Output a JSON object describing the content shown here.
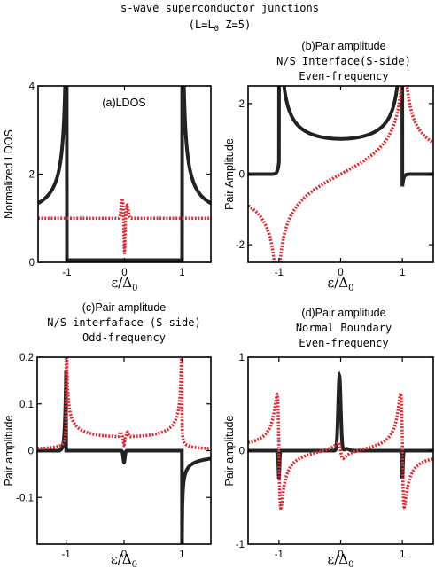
{
  "figure": {
    "title": "s-wave superconductor junctions",
    "params": "(L=L",
    "params_sub": "0",
    "params_tail": " Z=5)"
  },
  "chart_data": [
    {
      "type": "line",
      "title_lines": [
        "(a)LDOS"
      ],
      "xlabel": "ε/Δ",
      "xlabel_sub": "0",
      "ylabel": "Normalized LDOS",
      "xlim": [
        -1.5,
        1.5
      ],
      "ylim": [
        0,
        4
      ],
      "xticks": [
        -1,
        0,
        1
      ],
      "yticks": [
        0,
        2,
        4
      ],
      "series": [
        {
          "style": "solid-black",
          "curve": "ldos_s"
        },
        {
          "style": "dotted-red",
          "curve": "ldos_zbp"
        }
      ]
    },
    {
      "type": "line",
      "title_lines": [
        "(b)Pair amplitude",
        "N/S Interface(S-side)",
        "Even-frequency"
      ],
      "xlabel": "ε/Δ",
      "xlabel_sub": "0",
      "ylabel": "Pair Amplitude",
      "xlim": [
        -1.5,
        1.5
      ],
      "ylim": [
        -2.5,
        2.5
      ],
      "xticks": [
        -1,
        0,
        1
      ],
      "yticks": [
        -2,
        0,
        2
      ],
      "series": [
        {
          "style": "solid-black",
          "curve": "even_real"
        },
        {
          "style": "dotted-red",
          "curve": "even_imag"
        }
      ]
    },
    {
      "type": "line",
      "title_lines": [
        "(c)Pair amplitude",
        "N/S interfaface (S-side)",
        "Odd-frequency"
      ],
      "xlabel": "ε/Δ",
      "xlabel_sub": "0",
      "ylabel": "Pair amplitude",
      "xlim": [
        -1.5,
        1.5
      ],
      "ylim": [
        -0.2,
        0.2
      ],
      "xticks": [
        -1,
        0,
        1
      ],
      "yticks": [
        -0.1,
        0,
        0.1,
        0.2
      ],
      "series": [
        {
          "style": "solid-black",
          "curve": "odd_real"
        },
        {
          "style": "dotted-red",
          "curve": "odd_imag"
        }
      ]
    },
    {
      "type": "line",
      "title_lines": [
        "(d)Pair amplitude",
        "Normal Boundary",
        "Even-frequency"
      ],
      "xlabel": "ε/Δ",
      "xlabel_sub": "0",
      "ylabel": "Pair amplitude",
      "xlim": [
        -1.5,
        1.5
      ],
      "ylim": [
        -1,
        1
      ],
      "xticks": [
        -1,
        0,
        1
      ],
      "yticks": [
        -1,
        0,
        1
      ],
      "series": [
        {
          "style": "solid-black",
          "curve": "nb_real"
        },
        {
          "style": "dotted-red",
          "curve": "nb_imag"
        }
      ]
    }
  ],
  "colors": {
    "solid": "#222222",
    "dotted": "#d9303a"
  }
}
